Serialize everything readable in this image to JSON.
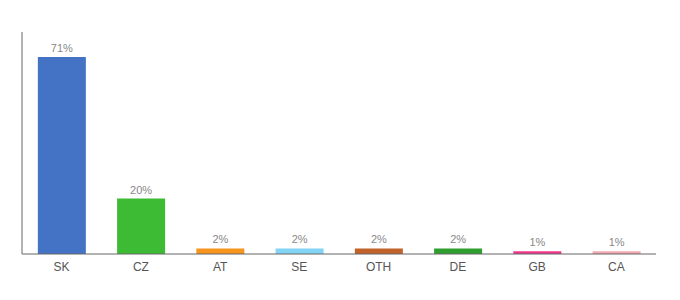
{
  "chart_data": {
    "type": "bar",
    "categories": [
      "SK",
      "CZ",
      "AT",
      "SE",
      "OTH",
      "DE",
      "GB",
      "CA"
    ],
    "values": [
      71,
      20,
      2,
      2,
      2,
      2,
      1,
      1
    ],
    "value_labels": [
      "71%",
      "20%",
      "2%",
      "2%",
      "2%",
      "2%",
      "1%",
      "1%"
    ],
    "colors": [
      "#4472c4",
      "#3dbb35",
      "#f7941d",
      "#83d4f5",
      "#c0622a",
      "#2e9e2e",
      "#f0368a",
      "#f4a8b0"
    ],
    "ylim": [
      0,
      80
    ],
    "tick_labels": "x",
    "grid": false
  }
}
